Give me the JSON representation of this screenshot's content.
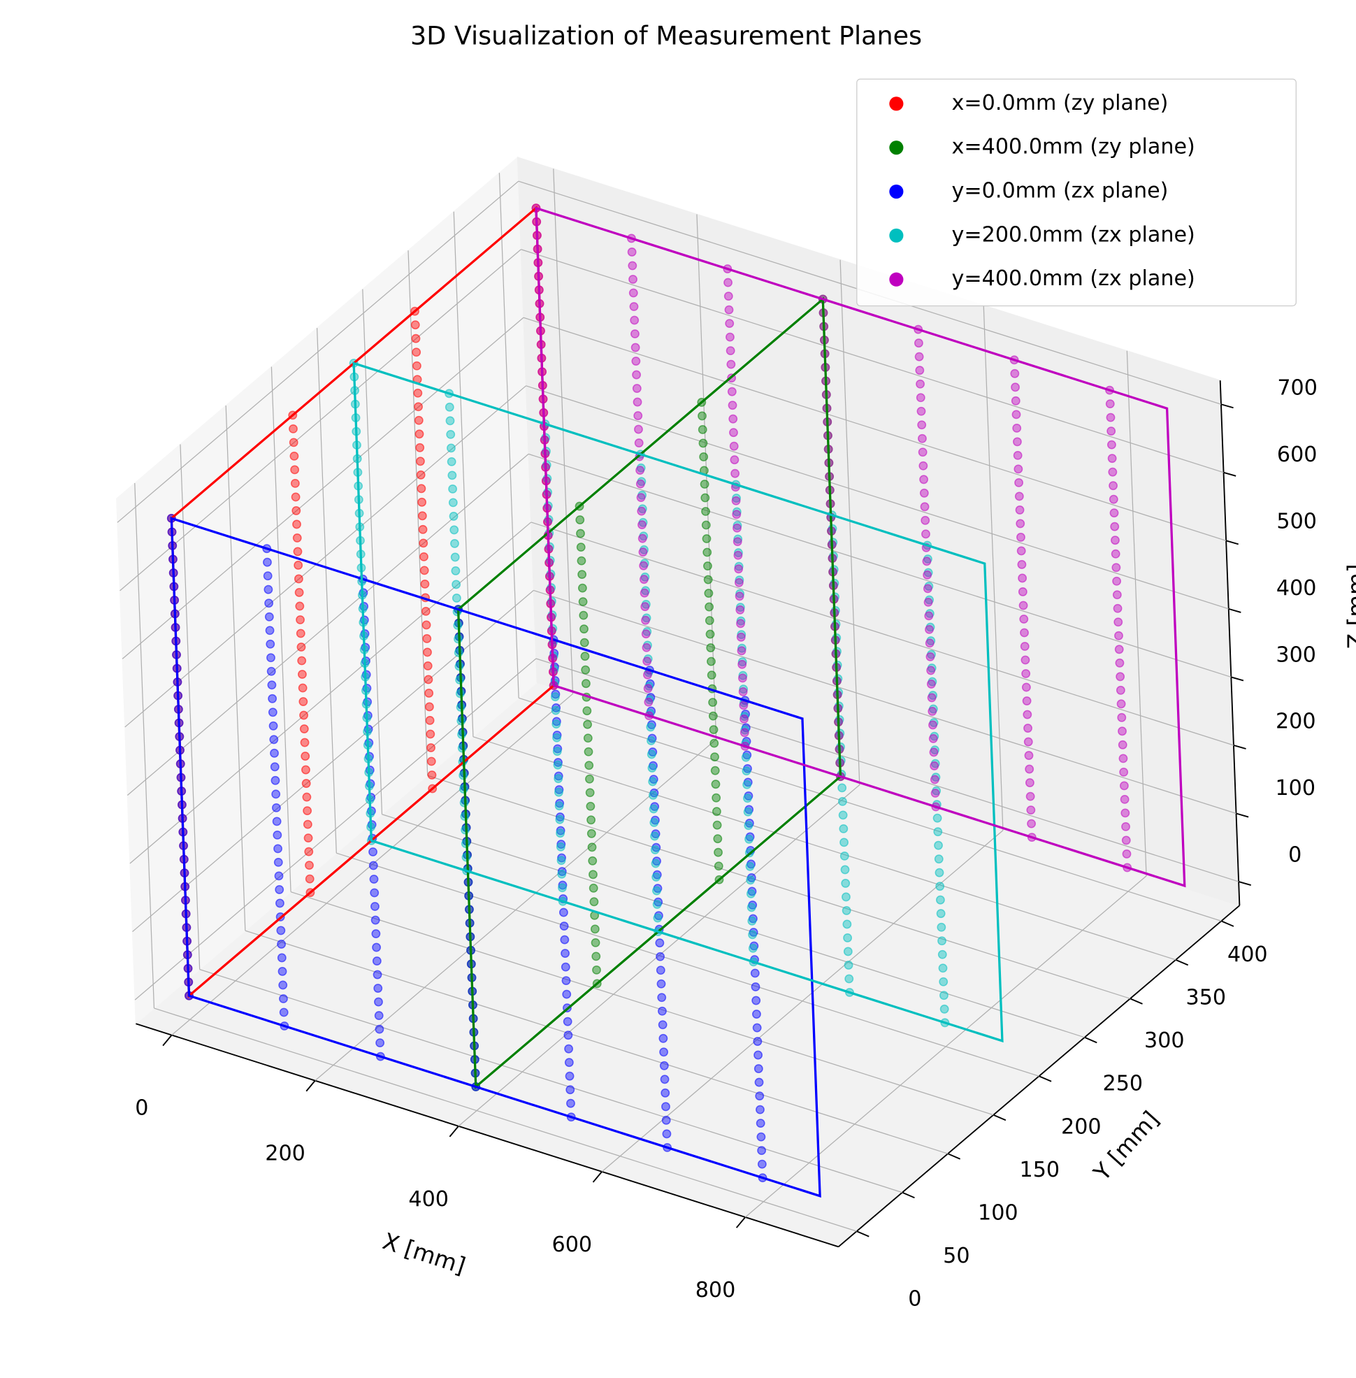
{
  "chart_data": {
    "type": "scatter3d",
    "title": "3D Visualization of Measurement Planes",
    "x_label": "X [mm]",
    "y_label": "Y [mm]",
    "z_label": "Z [mm]",
    "xlim": [
      -50,
      930
    ],
    "ylim": [
      -20,
      420
    ],
    "zlim": [
      -35,
      735
    ],
    "xticks": [
      0,
      200,
      400,
      600,
      800
    ],
    "yticks": [
      0,
      50,
      100,
      150,
      200,
      250,
      300,
      350,
      400
    ],
    "zticks": [
      0,
      100,
      200,
      300,
      400,
      500,
      600,
      700
    ],
    "grid": true,
    "legend": "upper right",
    "z_points": [
      0,
      20,
      40,
      60,
      80,
      100,
      120,
      140,
      160,
      180,
      200,
      220,
      240,
      260,
      280,
      300,
      320,
      340,
      360,
      380,
      400,
      420,
      440,
      460,
      480,
      500,
      520,
      540,
      560,
      580,
      600,
      620,
      640,
      660,
      680,
      700
    ],
    "plane_extent": {
      "x": [
        0,
        880
      ],
      "y": [
        0,
        400
      ],
      "z": [
        0,
        700
      ]
    },
    "series": [
      {
        "name": "x=0.0mm (zy plane)",
        "color": "#ff0000",
        "x": [
          0,
          0,
          0,
          0
        ],
        "y": [
          0,
          133,
          267,
          400
        ]
      },
      {
        "name": "x=400.0mm (zy plane)",
        "color": "#008000",
        "x": [
          400,
          400,
          400,
          400
        ],
        "y": [
          0,
          133,
          267,
          400
        ]
      },
      {
        "name": "y=0.0mm (zx plane)",
        "color": "#0000ff",
        "x": [
          0,
          133,
          267,
          400,
          533,
          667,
          800
        ],
        "y": [
          0,
          0,
          0,
          0,
          0,
          0,
          0
        ]
      },
      {
        "name": "y=200.0mm (zx plane)",
        "color": "#00bfbf",
        "x": [
          0,
          133,
          267,
          400,
          533,
          667,
          800
        ],
        "y": [
          200,
          200,
          200,
          200,
          200,
          200,
          200
        ]
      },
      {
        "name": "y=400.0mm (zx plane)",
        "color": "#bf00bf",
        "x": [
          0,
          133,
          267,
          400,
          533,
          667,
          800
        ],
        "y": [
          400,
          400,
          400,
          400,
          400,
          400,
          400
        ]
      }
    ]
  }
}
